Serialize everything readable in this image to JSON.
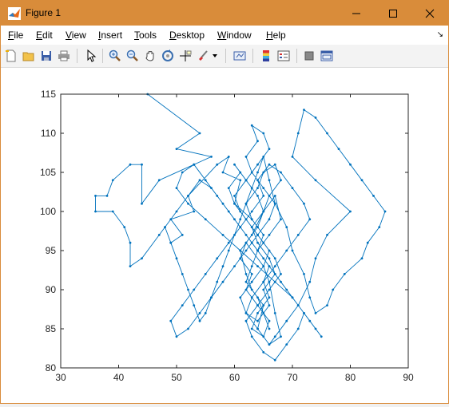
{
  "window": {
    "title": "Figure 1"
  },
  "menu": {
    "items": [
      {
        "label": "File",
        "u": "F",
        "rest": "ile"
      },
      {
        "label": "Edit",
        "u": "E",
        "rest": "dit"
      },
      {
        "label": "View",
        "u": "V",
        "rest": "iew"
      },
      {
        "label": "Insert",
        "u": "I",
        "rest": "nsert"
      },
      {
        "label": "Tools",
        "u": "T",
        "rest": "ools"
      },
      {
        "label": "Desktop",
        "u": "D",
        "rest": "esktop"
      },
      {
        "label": "Window",
        "u": "W",
        "rest": "indow"
      },
      {
        "label": "Help",
        "u": "H",
        "rest": "elp"
      }
    ]
  },
  "toolbar": {
    "icons": [
      "new-figure-icon",
      "open-file-icon",
      "save-icon",
      "print-icon",
      "pointer-icon",
      "zoom-in-icon",
      "zoom-out-icon",
      "pan-icon",
      "rotate-icon",
      "data-cursor-icon",
      "brush-icon",
      "link-icon",
      "colorbar-icon",
      "legend-icon",
      "hide-tools-icon",
      "dock-icon"
    ]
  },
  "colors": {
    "line": "#0072bd",
    "titlebar": "#d98c3a"
  },
  "chart_data": {
    "type": "line",
    "title": "",
    "xlabel": "",
    "ylabel": "",
    "xlim": [
      30,
      90
    ],
    "ylim": [
      80,
      115
    ],
    "xticks": [
      30,
      40,
      50,
      60,
      70,
      80,
      90
    ],
    "yticks": [
      80,
      85,
      90,
      95,
      100,
      105,
      110,
      115
    ],
    "marker": "point",
    "grid": false,
    "series": [
      {
        "x": [
          45,
          54,
          50,
          56,
          53,
          47,
          44,
          44,
          42,
          39,
          38,
          36,
          36,
          39,
          41,
          42,
          42,
          44,
          47,
          48,
          49,
          51,
          49,
          53,
          52,
          57,
          59,
          58,
          61,
          60,
          63,
          64,
          62,
          65,
          66,
          67,
          68,
          66,
          64,
          65,
          63,
          62,
          61,
          63,
          65,
          64,
          62,
          60,
          61,
          59,
          60,
          62,
          64,
          66,
          65,
          63,
          61,
          62,
          64,
          66,
          65,
          67,
          66,
          64,
          63,
          65,
          66,
          68,
          67,
          65,
          64,
          62,
          63,
          65,
          64,
          66,
          65,
          63,
          62,
          64,
          66,
          67,
          69,
          71,
          73,
          74,
          76,
          80,
          74,
          70,
          71,
          72,
          74,
          76,
          78,
          80,
          82,
          84,
          86,
          85,
          83,
          82,
          79,
          77,
          76,
          74,
          73,
          72,
          70,
          69,
          67,
          66,
          65,
          64,
          63,
          62,
          61,
          60,
          59,
          58,
          57,
          56,
          55,
          54,
          53,
          52,
          51,
          50,
          49,
          48,
          50,
          52,
          54,
          56,
          58,
          60,
          62,
          64,
          66,
          68,
          70,
          72,
          74,
          75,
          73,
          71,
          69,
          67,
          65,
          63,
          61,
          59,
          57,
          55,
          53,
          51,
          50,
          52,
          55,
          58,
          61,
          64,
          67,
          70,
          72,
          71,
          69,
          67,
          65,
          63,
          62,
          64,
          66,
          68,
          67,
          65,
          63,
          61,
          60,
          62,
          64,
          66,
          65,
          63,
          64,
          62,
          63,
          65,
          67,
          66,
          64,
          62,
          60,
          58,
          56,
          54,
          52,
          50,
          49,
          51,
          53,
          55,
          57,
          59,
          61,
          63,
          65,
          64,
          66,
          68,
          70,
          72,
          73,
          71,
          69,
          67,
          65,
          66,
          64,
          63,
          65,
          66,
          64,
          62,
          63,
          61,
          62,
          64,
          65,
          67,
          68,
          66,
          64,
          63,
          62,
          64,
          65,
          66
        ],
        "y": [
          115,
          110,
          108,
          107,
          106,
          104,
          101,
          106,
          106,
          104,
          102,
          102,
          100,
          100,
          98,
          96,
          93,
          94,
          97,
          98,
          96,
          97,
          99,
          100,
          102,
          106,
          107,
          105,
          104,
          101,
          99,
          98,
          96,
          93,
          91,
          87,
          84,
          83,
          85,
          88,
          90,
          92,
          95,
          97,
          100,
          102,
          104,
          106,
          105,
          103,
          101,
          99,
          97,
          95,
          93,
          91,
          89,
          87,
          86,
          88,
          90,
          92,
          94,
          96,
          98,
          100,
          102,
          104,
          106,
          105,
          103,
          101,
          99,
          97,
          95,
          93,
          91,
          89,
          87,
          85,
          83,
          84,
          86,
          88,
          91,
          94,
          97,
          100,
          104,
          107,
          110,
          113,
          112,
          110,
          108,
          106,
          104,
          102,
          100,
          98,
          96,
          94,
          92,
          90,
          88,
          87,
          89,
          92,
          95,
          98,
          101,
          104,
          107,
          105,
          103,
          101,
          99,
          97,
          95,
          93,
          91,
          89,
          87,
          86,
          88,
          90,
          92,
          94,
          96,
          98,
          100,
          102,
          104,
          103,
          101,
          99,
          97,
          95,
          93,
          91,
          89,
          87,
          85,
          84,
          86,
          88,
          90,
          92,
          94,
          96,
          98,
          100,
          102,
          104,
          106,
          105,
          103,
          101,
          99,
          97,
          95,
          93,
          91,
          89,
          87,
          85,
          83,
          81,
          82,
          84,
          86,
          88,
          90,
          92,
          94,
          96,
          98,
          100,
          102,
          104,
          106,
          108,
          110,
          111,
          109,
          107,
          105,
          103,
          101,
          99,
          97,
          95,
          93,
          91,
          89,
          87,
          85,
          84,
          86,
          88,
          90,
          92,
          94,
          96,
          98,
          100,
          102,
          104,
          106,
          105,
          103,
          101,
          99,
          97,
          95,
          93,
          91,
          89,
          87,
          85,
          84,
          86,
          88,
          90,
          92,
          94,
          96,
          98,
          100,
          102,
          99,
          97,
          95,
          93,
          91,
          89,
          87,
          85
        ]
      }
    ]
  }
}
